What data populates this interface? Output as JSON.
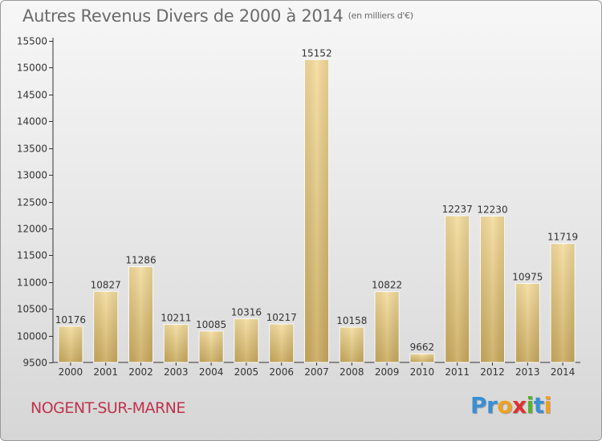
{
  "chart_data": {
    "type": "bar",
    "title": "Autres Revenus Divers de 2000 à 2014",
    "unit_note": "(en milliers d'€)",
    "categories": [
      "2000",
      "2001",
      "2002",
      "2003",
      "2004",
      "2005",
      "2006",
      "2007",
      "2008",
      "2009",
      "2010",
      "2011",
      "2012",
      "2013",
      "2014"
    ],
    "values": [
      10176,
      10827,
      11286,
      10211,
      10085,
      10316,
      10217,
      15152,
      10158,
      10822,
      9662,
      12237,
      12230,
      10975,
      11719
    ],
    "ylim": [
      9500,
      15500
    ],
    "yticks": [
      9500,
      10000,
      10500,
      11000,
      11500,
      12000,
      12500,
      13000,
      13500,
      14000,
      14500,
      15000,
      15500
    ],
    "grid": false,
    "bar_color": "#e8c97e"
  },
  "footer": {
    "commune": "NOGENT-SUR-MARNE",
    "logo_letters": [
      {
        "ch": "P",
        "color": "#3a8fd4"
      },
      {
        "ch": "r",
        "color": "#3a8fd4"
      },
      {
        "ch": "o",
        "color": "#f0a020"
      },
      {
        "ch": "x",
        "color": "#e03030"
      },
      {
        "ch": "i",
        "color": "#58b030"
      },
      {
        "ch": "t",
        "color": "#3a8fd4"
      },
      {
        "ch": "i",
        "color": "#f0a020"
      }
    ]
  }
}
